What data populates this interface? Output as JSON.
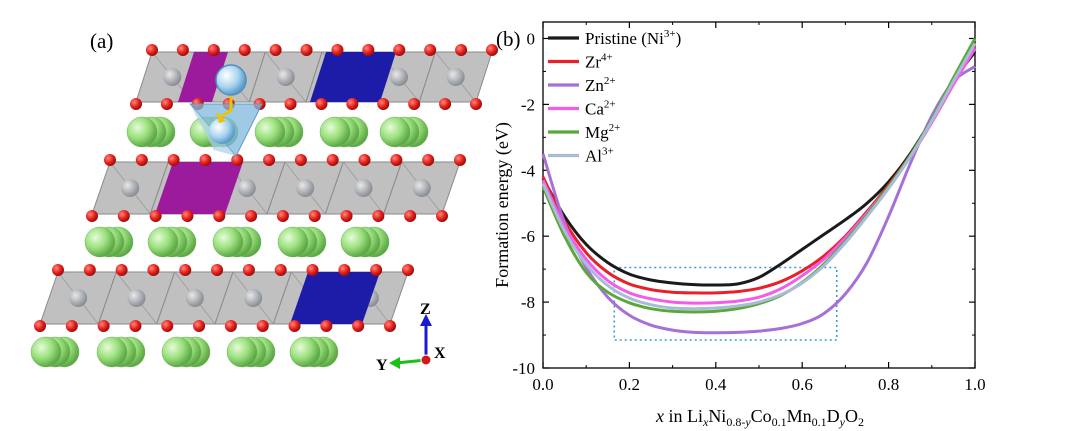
{
  "panel_a": {
    "label": "(a)",
    "axes": {
      "z": "Z",
      "y": "Y",
      "x": "X"
    },
    "colors": {
      "oxygen": "#e8201c",
      "lithium": "#9be07e",
      "octahedron": "#bdbdbd",
      "ni_site": "#8a8f96",
      "dopant_blue": "#1c1ca8",
      "dopant_magenta": "#9c1a9c",
      "tetra": "#7fb8dc",
      "migrating_ion": "#a9d4f0",
      "arrow": "#f0c300"
    }
  },
  "chart_data": {
    "type": "line",
    "panel_label": "(b)",
    "xlabel": {
      "pre": "x",
      "mid": " in Li",
      "subx": "x",
      "ni": "Ni",
      "sub1": "0.8-",
      "suby": "y",
      "co": "Co",
      "sub2": "0.1",
      "mn": "Mn",
      "sub3": "0.1",
      "d": "D",
      "suby2": "y",
      "o": "O",
      "sub4": "2"
    },
    "ylabel": "Formation energy  (eV)",
    "xlim": [
      0.0,
      1.0
    ],
    "ylim": [
      -10,
      0.5
    ],
    "xticks": [
      "0.0",
      "0.2",
      "0.4",
      "0.6",
      "0.8",
      "1.0"
    ],
    "yticks": [
      "0",
      "-2",
      "-4",
      "-6",
      "-8",
      "-10"
    ],
    "highlight_box": {
      "x": [
        0.165,
        0.68
      ],
      "y": [
        -9.15,
        -6.95
      ]
    },
    "legend": [
      {
        "base": "Pristine (Ni",
        "sup": "3+",
        "tail": ")",
        "color": "#1a1a1a"
      },
      {
        "base": "Zr",
        "sup": "4+",
        "tail": "",
        "color": "#e8202a"
      },
      {
        "base": "Zn",
        "sup": "2+",
        "tail": "",
        "color": "#a671d6"
      },
      {
        "base": "Ca",
        "sup": "2+",
        "tail": "",
        "color": "#f25ce8"
      },
      {
        "base": "Mg",
        "sup": "2+",
        "tail": "",
        "color": "#5aa83a"
      },
      {
        "base": "Al",
        "sup": "3+",
        "tail": "",
        "color": "#a8bcd8"
      }
    ],
    "series": [
      {
        "name": "Pristine (Ni3+)",
        "color": "#1a1a1a",
        "x": [
          0,
          0.05,
          0.1,
          0.15,
          0.2,
          0.25,
          0.3,
          0.35,
          0.4,
          0.45,
          0.5,
          0.55,
          0.6,
          0.65,
          0.7,
          0.75,
          0.8,
          0.85,
          0.9,
          0.95,
          1.0
        ],
        "y": [
          -4.25,
          -5.4,
          -6.25,
          -6.8,
          -7.15,
          -7.33,
          -7.42,
          -7.47,
          -7.48,
          -7.45,
          -7.25,
          -6.85,
          -6.4,
          -5.95,
          -5.5,
          -5.0,
          -4.35,
          -3.5,
          -2.45,
          -1.3,
          -0.4
        ]
      },
      {
        "name": "Zr4+",
        "color": "#e8202a",
        "x": [
          0,
          0.05,
          0.1,
          0.15,
          0.2,
          0.25,
          0.3,
          0.35,
          0.4,
          0.45,
          0.5,
          0.55,
          0.6,
          0.65,
          0.7,
          0.75,
          0.8,
          0.85,
          0.9,
          0.95,
          1.0
        ],
        "y": [
          -4.2,
          -5.55,
          -6.5,
          -7.1,
          -7.45,
          -7.62,
          -7.7,
          -7.72,
          -7.72,
          -7.68,
          -7.58,
          -7.38,
          -7.05,
          -6.6,
          -6.0,
          -5.25,
          -4.45,
          -3.55,
          -2.5,
          -1.35,
          -0.2
        ]
      },
      {
        "name": "Zn2+",
        "color": "#a671d6",
        "x": [
          0,
          0.05,
          0.1,
          0.15,
          0.2,
          0.25,
          0.3,
          0.35,
          0.4,
          0.45,
          0.5,
          0.55,
          0.6,
          0.65,
          0.7,
          0.75,
          0.8,
          0.85,
          0.9,
          0.95,
          1.0
        ],
        "y": [
          -3.5,
          -5.6,
          -6.95,
          -7.85,
          -8.4,
          -8.7,
          -8.85,
          -8.92,
          -8.93,
          -8.92,
          -8.88,
          -8.8,
          -8.65,
          -8.35,
          -7.75,
          -6.8,
          -5.4,
          -3.8,
          -2.35,
          -1.3,
          -0.85
        ]
      },
      {
        "name": "Ca2+",
        "color": "#f25ce8",
        "x": [
          0,
          0.05,
          0.1,
          0.15,
          0.2,
          0.25,
          0.3,
          0.35,
          0.4,
          0.45,
          0.5,
          0.55,
          0.6,
          0.65,
          0.7,
          0.75,
          0.8,
          0.85,
          0.9,
          0.95,
          1.0
        ],
        "y": [
          -4.3,
          -5.7,
          -6.7,
          -7.35,
          -7.72,
          -7.9,
          -8.0,
          -8.03,
          -8.02,
          -7.97,
          -7.85,
          -7.6,
          -7.2,
          -6.7,
          -6.05,
          -5.3,
          -4.5,
          -3.6,
          -2.55,
          -1.4,
          -0.3
        ]
      },
      {
        "name": "Mg2+",
        "color": "#5aa83a",
        "x": [
          0,
          0.05,
          0.1,
          0.15,
          0.2,
          0.25,
          0.3,
          0.35,
          0.4,
          0.45,
          0.5,
          0.55,
          0.6,
          0.65,
          0.7,
          0.75,
          0.8,
          0.85,
          0.9,
          0.95,
          1.0
        ],
        "y": [
          -4.5,
          -6.0,
          -7.1,
          -7.7,
          -8.02,
          -8.2,
          -8.28,
          -8.3,
          -8.28,
          -8.2,
          -8.05,
          -7.8,
          -7.4,
          -6.85,
          -6.15,
          -5.35,
          -4.5,
          -3.55,
          -2.45,
          -1.2,
          0.0
        ]
      },
      {
        "name": "Al3+",
        "color": "#a8bcd8",
        "x": [
          0,
          0.05,
          0.1,
          0.15,
          0.2,
          0.25,
          0.3,
          0.35,
          0.4,
          0.45,
          0.5,
          0.55,
          0.6,
          0.65,
          0.7,
          0.75,
          0.8,
          0.85,
          0.9,
          0.95,
          1.0
        ],
        "y": [
          -4.4,
          -5.85,
          -6.85,
          -7.5,
          -7.88,
          -8.08,
          -8.18,
          -8.2,
          -8.18,
          -8.12,
          -8.0,
          -7.78,
          -7.42,
          -6.9,
          -6.2,
          -5.4,
          -4.55,
          -3.6,
          -2.5,
          -1.3,
          -0.15
        ]
      }
    ]
  }
}
